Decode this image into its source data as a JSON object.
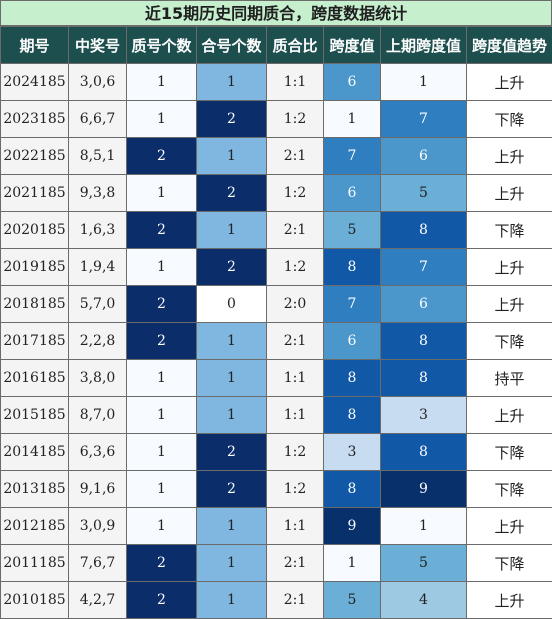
{
  "title": "近15期历史同期质合，跨度数据统计",
  "headers": [
    "期号",
    "中奖号",
    "质号个数",
    "合号个数",
    "质合比",
    "跨度值",
    "上期跨度值",
    "跨度值趋势"
  ],
  "rows": [
    {
      "period": "2024185",
      "numbers": "3,0,6",
      "prime": "1",
      "composite": "1",
      "ratio": "1:1",
      "span": "6",
      "prev_span": "1",
      "trend": "上升"
    },
    {
      "period": "2023185",
      "numbers": "6,6,7",
      "prime": "1",
      "composite": "2",
      "ratio": "1:2",
      "span": "1",
      "prev_span": "7",
      "trend": "下降"
    },
    {
      "period": "2022185",
      "numbers": "8,5,1",
      "prime": "2",
      "composite": "1",
      "ratio": "2:1",
      "span": "7",
      "prev_span": "6",
      "trend": "上升"
    },
    {
      "period": "2021185",
      "numbers": "9,3,8",
      "prime": "1",
      "composite": "2",
      "ratio": "1:2",
      "span": "6",
      "prev_span": "5",
      "trend": "上升"
    },
    {
      "period": "2020185",
      "numbers": "1,6,3",
      "prime": "2",
      "composite": "1",
      "ratio": "2:1",
      "span": "5",
      "prev_span": "8",
      "trend": "下降"
    },
    {
      "period": "2019185",
      "numbers": "1,9,4",
      "prime": "1",
      "composite": "2",
      "ratio": "1:2",
      "span": "8",
      "prev_span": "7",
      "trend": "上升"
    },
    {
      "period": "2018185",
      "numbers": "5,7,0",
      "prime": "2",
      "composite": "0",
      "ratio": "2:0",
      "span": "7",
      "prev_span": "6",
      "trend": "上升"
    },
    {
      "period": "2017185",
      "numbers": "2,2,8",
      "prime": "2",
      "composite": "1",
      "ratio": "2:1",
      "span": "6",
      "prev_span": "8",
      "trend": "下降"
    },
    {
      "period": "2016185",
      "numbers": "3,8,0",
      "prime": "1",
      "composite": "1",
      "ratio": "1:1",
      "span": "8",
      "prev_span": "8",
      "trend": "持平"
    },
    {
      "period": "2015185",
      "numbers": "8,7,0",
      "prime": "1",
      "composite": "1",
      "ratio": "1:1",
      "span": "8",
      "prev_span": "3",
      "trend": "上升"
    },
    {
      "period": "2014185",
      "numbers": "6,3,6",
      "prime": "1",
      "composite": "2",
      "ratio": "1:2",
      "span": "3",
      "prev_span": "8",
      "trend": "下降"
    },
    {
      "period": "2013185",
      "numbers": "9,1,6",
      "prime": "1",
      "composite": "2",
      "ratio": "1:2",
      "span": "8",
      "prev_span": "9",
      "trend": "下降"
    },
    {
      "period": "2012185",
      "numbers": "3,0,9",
      "prime": "1",
      "composite": "1",
      "ratio": "1:1",
      "span": "9",
      "prev_span": "1",
      "trend": "上升"
    },
    {
      "period": "2011185",
      "numbers": "7,6,7",
      "prime": "2",
      "composite": "1",
      "ratio": "2:1",
      "span": "1",
      "prev_span": "5",
      "trend": "下降"
    },
    {
      "period": "2010185",
      "numbers": "4,2,7",
      "prime": "2",
      "composite": "1",
      "ratio": "2:1",
      "span": "5",
      "prev_span": "4",
      "trend": "上升"
    }
  ],
  "colors": {
    "title_bg": "#c6efce",
    "header_bg": "#1e4f4f",
    "header_text": "#ffffff",
    "base_cell_bg": "#f4f4f4",
    "count_scale": {
      "0": "#ffffff",
      "1": "#7fb7e0",
      "2": "#0b2e6b"
    },
    "prime_one_bg": "#f7fbff",
    "span_scale": {
      "1": "#f7fbff",
      "3": "#c7dcf0",
      "4": "#9dc9e2",
      "5": "#6baed6",
      "6": "#4b97cc",
      "7": "#2f7ec0",
      "8": "#1158a6",
      "9": "#08306b"
    }
  }
}
